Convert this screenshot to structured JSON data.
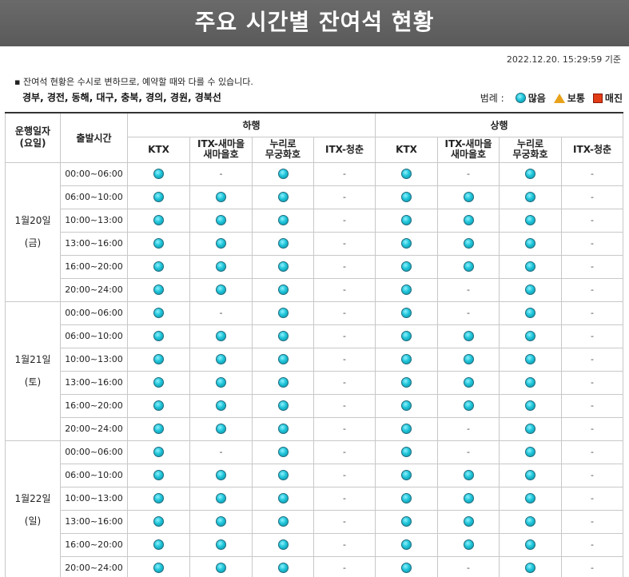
{
  "page": {
    "title": "주요 시간별 잔여석 현황",
    "timestamp": "2022.12.20. 15:29:59 기준",
    "notice": "▪ 잔여석 현황은 수시로 변하므로, 예약할 때와 다를 수 있습니다.",
    "routes": "경부, 경전, 동해, 대구, 충북, 경의, 경원, 경북선"
  },
  "legend": {
    "title": "범례 :",
    "many": "많음",
    "normal": "보통",
    "soldout": "매진"
  },
  "header": {
    "date_col": "운행일자\n(요일)",
    "time_col": "출발시간",
    "down": "하행",
    "up": "상행",
    "trains": [
      "KTX",
      "ITX-새마을\n새마을호",
      "누리로\n무궁화호",
      "ITX-청춘"
    ]
  },
  "colors": {
    "many": "#1ec4d8",
    "normal": "#e8a21a",
    "soldout": "#e23c17",
    "title_bar": "#616161"
  },
  "days": [
    {
      "date": "1월20일",
      "dow": "(금)",
      "rows": [
        {
          "time": "00:00~06:00",
          "status": [
            "many",
            "-",
            "many",
            "-",
            "many",
            "-",
            "many",
            "-"
          ]
        },
        {
          "time": "06:00~10:00",
          "status": [
            "many",
            "many",
            "many",
            "-",
            "many",
            "many",
            "many",
            "-"
          ]
        },
        {
          "time": "10:00~13:00",
          "status": [
            "many",
            "many",
            "many",
            "-",
            "many",
            "many",
            "many",
            "-"
          ]
        },
        {
          "time": "13:00~16:00",
          "status": [
            "many",
            "many",
            "many",
            "-",
            "many",
            "many",
            "many",
            "-"
          ]
        },
        {
          "time": "16:00~20:00",
          "status": [
            "many",
            "many",
            "many",
            "-",
            "many",
            "many",
            "many",
            "-"
          ]
        },
        {
          "time": "20:00~24:00",
          "status": [
            "many",
            "many",
            "many",
            "-",
            "many",
            "-",
            "many",
            "-"
          ]
        }
      ]
    },
    {
      "date": "1월21일",
      "dow": "(토)",
      "rows": [
        {
          "time": "00:00~06:00",
          "status": [
            "many",
            "-",
            "many",
            "-",
            "many",
            "-",
            "many",
            "-"
          ]
        },
        {
          "time": "06:00~10:00",
          "status": [
            "many",
            "many",
            "many",
            "-",
            "many",
            "many",
            "many",
            "-"
          ]
        },
        {
          "time": "10:00~13:00",
          "status": [
            "many",
            "many",
            "many",
            "-",
            "many",
            "many",
            "many",
            "-"
          ]
        },
        {
          "time": "13:00~16:00",
          "status": [
            "many",
            "many",
            "many",
            "-",
            "many",
            "many",
            "many",
            "-"
          ]
        },
        {
          "time": "16:00~20:00",
          "status": [
            "many",
            "many",
            "many",
            "-",
            "many",
            "many",
            "many",
            "-"
          ]
        },
        {
          "time": "20:00~24:00",
          "status": [
            "many",
            "many",
            "many",
            "-",
            "many",
            "-",
            "many",
            "-"
          ]
        }
      ]
    },
    {
      "date": "1월22일",
      "dow": "(일)",
      "rows": [
        {
          "time": "00:00~06:00",
          "status": [
            "many",
            "-",
            "many",
            "-",
            "many",
            "-",
            "many",
            "-"
          ]
        },
        {
          "time": "06:00~10:00",
          "status": [
            "many",
            "many",
            "many",
            "-",
            "many",
            "many",
            "many",
            "-"
          ]
        },
        {
          "time": "10:00~13:00",
          "status": [
            "many",
            "many",
            "many",
            "-",
            "many",
            "many",
            "many",
            "-"
          ]
        },
        {
          "time": "13:00~16:00",
          "status": [
            "many",
            "many",
            "many",
            "-",
            "many",
            "many",
            "many",
            "-"
          ]
        },
        {
          "time": "16:00~20:00",
          "status": [
            "many",
            "many",
            "many",
            "-",
            "many",
            "many",
            "many",
            "-"
          ]
        },
        {
          "time": "20:00~24:00",
          "status": [
            "many",
            "many",
            "many",
            "-",
            "many",
            "-",
            "many",
            "-"
          ]
        }
      ]
    }
  ]
}
